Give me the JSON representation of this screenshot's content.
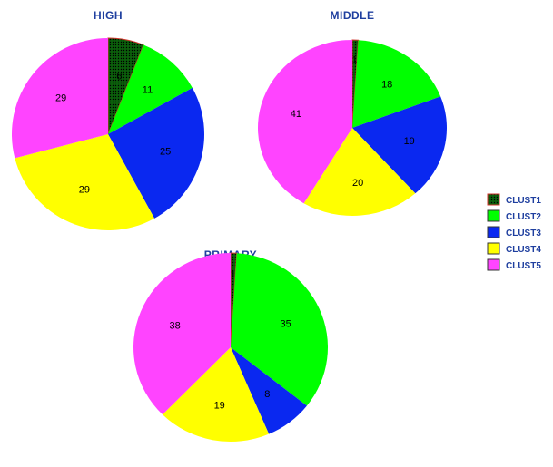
{
  "chart_data": {
    "type": "pie",
    "legend": {
      "placement": "right",
      "entries": [
        {
          "name": "CLUST1",
          "color": "#0b5e0b",
          "pattern": "dotted",
          "border": "#d0342c"
        },
        {
          "name": "CLUST2",
          "color": "#00ff00"
        },
        {
          "name": "CLUST3",
          "color": "#0a28f0"
        },
        {
          "name": "CLUST4",
          "color": "#ffff00"
        },
        {
          "name": "CLUST5",
          "color": "#ff44ff"
        }
      ]
    },
    "pies": [
      {
        "title": "HIGH",
        "values": [
          6,
          11,
          25,
          29,
          29
        ]
      },
      {
        "title": "MIDDLE",
        "values": [
          1,
          18,
          19,
          20,
          41
        ]
      },
      {
        "title": "PRIMARY",
        "values": [
          1,
          35,
          8,
          19,
          38
        ]
      }
    ]
  }
}
